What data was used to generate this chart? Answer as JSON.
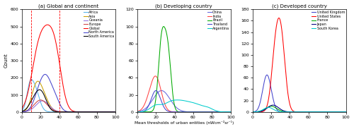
{
  "title_a": "(a) Global and continent",
  "title_b": "(b) Developing country",
  "title_c": "(c) Developed country",
  "xlabel": "Mean thresholds of urban entities (nWcm⁻²sr⁻¹)",
  "ylabel": "Count",
  "xlim": [
    0,
    100
  ],
  "ylim_a": [
    0,
    600
  ],
  "ylim_b": [
    0,
    120
  ],
  "ylim_c": [
    0,
    180
  ],
  "yticks_a": [
    0,
    100,
    200,
    300,
    400,
    500,
    600
  ],
  "yticks_b": [
    0,
    20,
    40,
    60,
    80,
    100,
    120
  ],
  "yticks_c": [
    0,
    20,
    40,
    60,
    80,
    100,
    120,
    140,
    160,
    180
  ],
  "xticks": [
    0,
    20,
    40,
    60,
    80,
    100
  ],
  "dashed_lines_a": [
    10,
    40
  ],
  "legend_a": [
    "Africa",
    "Asia",
    "Oceania",
    "Europe",
    "Global",
    "North America",
    "South America"
  ],
  "colors_a": {
    "Africa": "#56b4e9",
    "Asia": "#c8a000",
    "Oceania": "#9370db",
    "Europe": "#cc4444",
    "Global": "#ff0000",
    "North America": "#4444cc",
    "South America": "#000000"
  },
  "legend_b": [
    "China",
    "India",
    "Brazil",
    "Thailand",
    "Argentina"
  ],
  "colors_b": {
    "China": "#6666dd",
    "India": "#ff4444",
    "Brazil": "#00aa00",
    "Thailand": "#4444cc",
    "Argentina": "#00cccc"
  },
  "legend_c": [
    "United Kingdom",
    "United States",
    "France",
    "Japan",
    "South Korea"
  ],
  "colors_c": {
    "United Kingdom": "#4444cc",
    "United States": "#ff0000",
    "France": "#00aa00",
    "Japan": "#000080",
    "South Korea": "#00cccc"
  },
  "background_color": "#ffffff"
}
